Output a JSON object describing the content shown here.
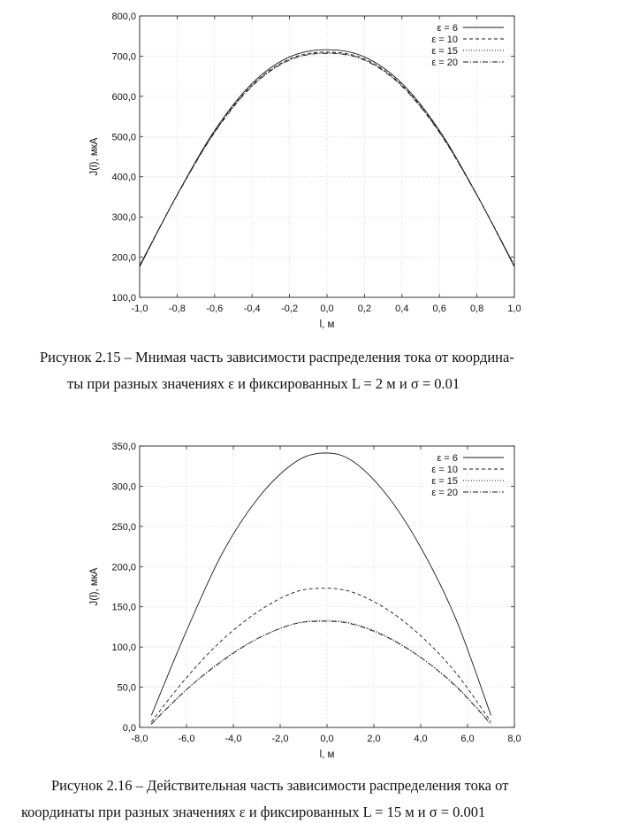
{
  "figures": [
    {
      "caption_lines": [
        "Рисунок 2.15 – Мнимая часть зависимости распределения тока от координа-",
        "ты при разных значениях ε и фиксированных L = 2 м и σ = 0.01"
      ]
    },
    {
      "caption_lines": [
        "Рисунок 2.16 – Действительная часть зависимости распределения тока от",
        "координаты при разных значениях ε и фиксированных L = 15 м и σ = 0.001"
      ]
    }
  ],
  "chart_data": [
    {
      "type": "line",
      "xlabel": "l, м",
      "ylabel": "J(l), мкА",
      "xlim": [
        -1.0,
        1.0
      ],
      "ylim": [
        100.0,
        800.0
      ],
      "xticks": [
        "-1,0",
        "-0,8",
        "-0,6",
        "-0,4",
        "-0,2",
        "0,0",
        "0,2",
        "0,4",
        "0,6",
        "0,8",
        "1,0"
      ],
      "yticks": [
        "100,0",
        "200,0",
        "300,0",
        "400,0",
        "500,0",
        "600,0",
        "700,0",
        "800,0"
      ],
      "grid": true,
      "legend_position": "top-right",
      "x": [
        -1.0,
        -0.8,
        -0.6,
        -0.4,
        -0.2,
        0.0,
        0.2,
        0.4,
        0.6,
        0.8,
        1.0
      ],
      "series": [
        {
          "name": "ε = 6",
          "dash": "solid",
          "values": [
            176,
            355,
            515,
            632,
            698,
            716,
            698,
            632,
            515,
            355,
            176
          ]
        },
        {
          "name": "ε = 10",
          "dash": "dashed",
          "values": [
            178,
            355,
            512,
            628,
            693,
            710,
            693,
            628,
            512,
            355,
            178
          ]
        },
        {
          "name": "ε = 15",
          "dash": "dotted",
          "values": [
            179,
            354,
            511,
            626,
            691,
            708,
            691,
            626,
            511,
            354,
            179
          ]
        },
        {
          "name": "ε = 20",
          "dash": "dash-dot",
          "values": [
            179,
            354,
            510,
            625,
            690,
            707,
            690,
            625,
            510,
            354,
            179
          ]
        }
      ]
    },
    {
      "type": "line",
      "xlabel": "l, м",
      "ylabel": "J(l), мкА",
      "xlim": [
        -8.0,
        8.0
      ],
      "ylim": [
        0.0,
        350.0
      ],
      "xticks": [
        "-8,0",
        "-6,0",
        "-4,0",
        "-2,0",
        "0,0",
        "2,0",
        "4,0",
        "6,0",
        "8,0"
      ],
      "yticks": [
        "0,0",
        "50,0",
        "100,0",
        "150,0",
        "200,0",
        "250,0",
        "300,0",
        "350,0"
      ],
      "grid": true,
      "legend_position": "top-right",
      "x": [
        -7.5,
        -6.0,
        -4.5,
        -3.0,
        -1.5,
        -0.3,
        1.0,
        2.5,
        4.0,
        5.5,
        7.0
      ],
      "series": [
        {
          "name": "ε = 6",
          "dash": "solid",
          "values": [
            15,
            120,
            215,
            283,
            327,
            341,
            333,
            291,
            224,
            135,
            15
          ]
        },
        {
          "name": "ε = 10",
          "dash": "dashed",
          "values": [
            7,
            62,
            108,
            143,
            167,
            173,
            169,
            148,
            114,
            68,
            7
          ]
        },
        {
          "name": "ε = 15",
          "dash": "dotted",
          "values": [
            5,
            47,
            83,
            110,
            128,
            133,
            130,
            114,
            87,
            52,
            5
          ]
        },
        {
          "name": "ε = 20",
          "dash": "dash-dot",
          "values": [
            4,
            47,
            82,
            110,
            128,
            132,
            129,
            113,
            87,
            51,
            4
          ]
        }
      ]
    }
  ]
}
